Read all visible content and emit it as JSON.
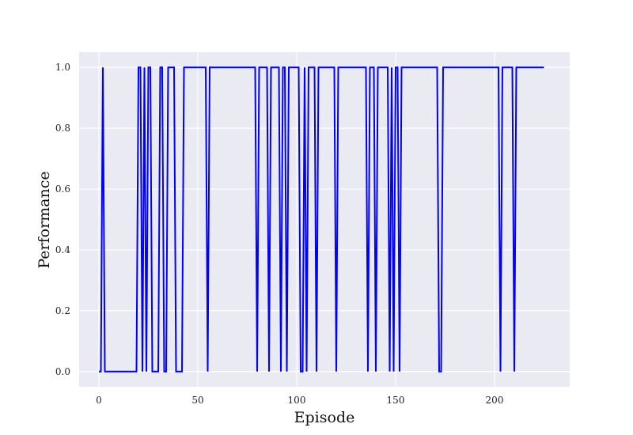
{
  "chart_data": {
    "type": "line",
    "title": "",
    "xlabel": "Episode",
    "ylabel": "Performance",
    "xlim": [
      -10,
      238
    ],
    "ylim": [
      -0.05,
      1.05
    ],
    "xticks": [
      0,
      50,
      100,
      150,
      200
    ],
    "yticks": [
      0.0,
      0.2,
      0.4,
      0.6,
      0.8,
      1.0
    ],
    "grid": true,
    "legend": "none",
    "colors": {
      "line": "#0000ff",
      "plot_background": "#eaeaf2",
      "grid": "#ffffff"
    },
    "series": [
      {
        "x": [
          0,
          1,
          2,
          3,
          4,
          5,
          6,
          7,
          8,
          9,
          10,
          11,
          12,
          13,
          14,
          15,
          16,
          17,
          18,
          19,
          20,
          21,
          22,
          23,
          24,
          25,
          26,
          27,
          28,
          29,
          30,
          31,
          32,
          33,
          34,
          35,
          36,
          37,
          38,
          39,
          40,
          41,
          42,
          43,
          44,
          45,
          46,
          47,
          48,
          49,
          50,
          51,
          52,
          53,
          54,
          55,
          56,
          57,
          58,
          59,
          60,
          61,
          62,
          63,
          64,
          65,
          66,
          67,
          68,
          69,
          70,
          71,
          72,
          73,
          74,
          75,
          76,
          77,
          78,
          79,
          80,
          81,
          82,
          83,
          84,
          85,
          86,
          87,
          88,
          89,
          90,
          91,
          92,
          93,
          94,
          95,
          96,
          97,
          98,
          99,
          100,
          101,
          102,
          103,
          104,
          105,
          106,
          107,
          108,
          109,
          110,
          111,
          112,
          113,
          114,
          115,
          116,
          117,
          118,
          119,
          120,
          121,
          122,
          123,
          124,
          125,
          126,
          127,
          128,
          129,
          130,
          131,
          132,
          133,
          134,
          135,
          136,
          137,
          138,
          139,
          140,
          141,
          142,
          143,
          144,
          145,
          146,
          147,
          148,
          149,
          150,
          151,
          152,
          153,
          154,
          155,
          156,
          157,
          158,
          159,
          160,
          161,
          162,
          163,
          164,
          165,
          166,
          167,
          168,
          169,
          170,
          171,
          172,
          173,
          174,
          175,
          176,
          177,
          178,
          179,
          180,
          181,
          182,
          183,
          184,
          185,
          186,
          187,
          188,
          189,
          190,
          191,
          192,
          193,
          194,
          195,
          196,
          197,
          198,
          199,
          200,
          201,
          202,
          203,
          204,
          205,
          206,
          207,
          208,
          209,
          210,
          211,
          212,
          213,
          214,
          215,
          216,
          217,
          218,
          219,
          220,
          221,
          222,
          223,
          224,
          225
        ],
        "values": [
          0,
          0,
          1,
          0,
          0,
          0,
          0,
          0,
          0,
          0,
          0,
          0,
          0,
          0,
          0,
          0,
          0,
          0,
          0,
          0,
          1,
          1,
          0,
          1,
          0,
          1,
          1,
          0,
          0,
          0,
          0,
          1,
          1,
          0,
          0,
          1,
          1,
          1,
          1,
          0,
          0,
          0,
          0,
          1,
          1,
          1,
          1,
          1,
          1,
          1,
          1,
          1,
          1,
          1,
          1,
          0,
          1,
          1,
          1,
          1,
          1,
          1,
          1,
          1,
          1,
          1,
          1,
          1,
          1,
          1,
          1,
          1,
          1,
          1,
          1,
          1,
          1,
          1,
          1,
          1,
          0,
          1,
          1,
          1,
          1,
          1,
          0,
          1,
          1,
          1,
          1,
          1,
          0,
          1,
          1,
          0,
          1,
          1,
          1,
          1,
          1,
          1,
          0,
          0,
          1,
          0,
          1,
          1,
          1,
          1,
          0,
          1,
          1,
          1,
          1,
          1,
          1,
          1,
          1,
          1,
          0,
          1,
          1,
          1,
          1,
          1,
          1,
          1,
          1,
          1,
          1,
          1,
          1,
          1,
          1,
          1,
          0,
          1,
          1,
          1,
          0,
          1,
          1,
          1,
          1,
          1,
          1,
          0,
          1,
          0,
          1,
          1,
          0,
          1,
          1,
          1,
          1,
          1,
          1,
          1,
          1,
          1,
          1,
          1,
          1,
          1,
          1,
          1,
          1,
          1,
          1,
          1,
          0,
          0,
          1,
          1,
          1,
          1,
          1,
          1,
          1,
          1,
          1,
          1,
          1,
          1,
          1,
          1,
          1,
          1,
          1,
          1,
          1,
          1,
          1,
          1,
          1,
          1,
          1,
          1,
          1,
          1,
          1,
          0,
          1,
          1,
          1,
          1,
          1,
          1,
          0,
          1,
          1,
          1,
          1,
          1,
          1,
          1,
          1,
          1,
          1,
          1,
          1,
          1,
          1,
          1
        ]
      }
    ]
  }
}
